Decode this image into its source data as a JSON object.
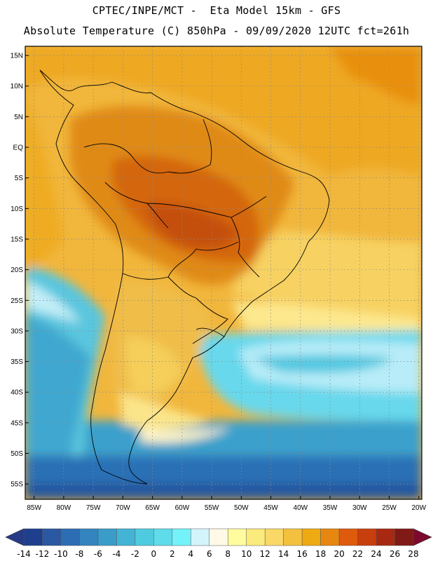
{
  "title": {
    "line1": "CPTEC/INPE/MCT -  Eta Model 15km - GFS",
    "line2": "Absolute Temperature (C) 850hPa - 09/09/2020 12UTC fct=261h"
  },
  "map": {
    "lat_labels": [
      "15N",
      "10N",
      "5N",
      "EQ",
      "5S",
      "10S",
      "15S",
      "20S",
      "25S",
      "30S",
      "35S",
      "40S",
      "45S",
      "50S",
      "55S"
    ],
    "lon_labels": [
      "85W",
      "80W",
      "75W",
      "70W",
      "65W",
      "60W",
      "55W",
      "50W",
      "45W",
      "40W",
      "35W",
      "30W",
      "25W",
      "20W"
    ],
    "lat_range": [
      -57.5,
      16.5
    ],
    "lon_range": [
      -86.5,
      -19.5
    ],
    "border_color": "#000000",
    "grid_color": "#8a8a8a"
  },
  "colorbar": {
    "tick_labels": [
      "-14",
      "-12",
      "-10",
      "-8",
      "-6",
      "-4",
      "-2",
      "0",
      "2",
      "4",
      "6",
      "8",
      "10",
      "12",
      "14",
      "16",
      "18",
      "20",
      "22",
      "24",
      "26",
      "28"
    ],
    "colors": [
      "#1f3e8e",
      "#2a58a2",
      "#2d6db3",
      "#3384bf",
      "#3a9cc8",
      "#43b4d4",
      "#4fcbe0",
      "#5fdcea",
      "#73f2f9",
      "#d4f4fb",
      "#fff9e6",
      "#fffca0",
      "#fbea7c",
      "#f9d867",
      "#f4c13f",
      "#eeaa12",
      "#e8870f",
      "#de5a0c",
      "#c83e0d",
      "#a92811",
      "#7f1a15"
    ],
    "under_color": "#263a86",
    "over_color": "#7d0a2e"
  }
}
